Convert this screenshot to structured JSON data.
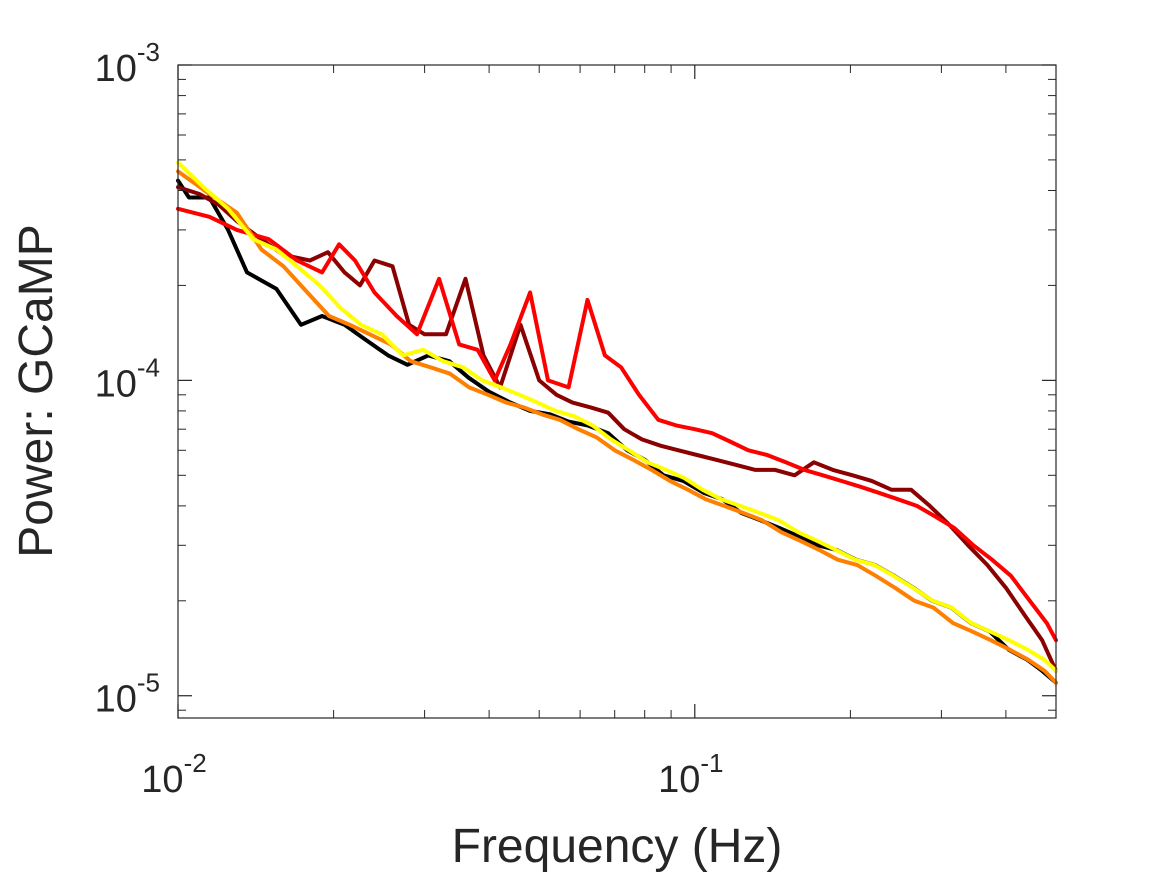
{
  "chart_data": {
    "type": "line",
    "title": "",
    "xlabel": "Frequency (Hz)",
    "ylabel": "Power: GCaMP",
    "xscale": "log",
    "yscale": "log",
    "xlim": [
      0.01,
      0.5
    ],
    "ylim": [
      8.5e-06,
      0.001
    ],
    "grid": false,
    "legend": "none",
    "x_ticks": [
      {
        "value": 0.01,
        "base": "10",
        "exp": "-2"
      },
      {
        "value": 0.1,
        "base": "10",
        "exp": "-1"
      }
    ],
    "y_ticks": [
      {
        "value": 1e-05,
        "base": "10",
        "exp": "-5"
      },
      {
        "value": 0.0001,
        "base": "10",
        "exp": "-4"
      },
      {
        "value": 0.001,
        "base": "10",
        "exp": "-3"
      }
    ],
    "series": [
      {
        "color": "#000000",
        "x": [
          0.01,
          0.0105,
          0.0115,
          0.0125,
          0.0136,
          0.0155,
          0.0173,
          0.019,
          0.021,
          0.023,
          0.0255,
          0.0278,
          0.0305,
          0.0335,
          0.0365,
          0.04,
          0.044,
          0.048,
          0.0525,
          0.057,
          0.062,
          0.068,
          0.074,
          0.08,
          0.087,
          0.095,
          0.104,
          0.113,
          0.123,
          0.134,
          0.146,
          0.159,
          0.173,
          0.188,
          0.205,
          0.223,
          0.243,
          0.265,
          0.288,
          0.314,
          0.342,
          0.372,
          0.405,
          0.44,
          0.47,
          0.5
        ],
        "y": [
          0.00043,
          0.00038,
          0.00038,
          0.0003,
          0.00022,
          0.000195,
          0.00015,
          0.00016,
          0.00015,
          0.000135,
          0.00012,
          0.000112,
          0.00012,
          0.000115,
          0.000102,
          9.2e-05,
          8.5e-05,
          8e-05,
          7.8e-05,
          7.4e-05,
          7.2e-05,
          6.8e-05,
          6e-05,
          5.6e-05,
          5e-05,
          4.8e-05,
          4.4e-05,
          4.2e-05,
          3.8e-05,
          3.6e-05,
          3.4e-05,
          3.2e-05,
          3e-05,
          2.9e-05,
          2.7e-05,
          2.6e-05,
          2.4e-05,
          2.2e-05,
          2e-05,
          1.9e-05,
          1.7e-05,
          1.6e-05,
          1.4e-05,
          1.3e-05,
          1.2e-05,
          1.1e-05
        ]
      },
      {
        "color": "#8b0000",
        "x": [
          0.01,
          0.011,
          0.012,
          0.013,
          0.0145,
          0.016,
          0.018,
          0.0195,
          0.021,
          0.0225,
          0.024,
          0.026,
          0.028,
          0.03,
          0.033,
          0.036,
          0.039,
          0.042,
          0.046,
          0.05,
          0.054,
          0.058,
          0.063,
          0.068,
          0.073,
          0.079,
          0.086,
          0.093,
          0.101,
          0.11,
          0.12,
          0.131,
          0.143,
          0.156,
          0.17,
          0.185,
          0.202,
          0.22,
          0.24,
          0.262,
          0.285,
          0.31,
          0.338,
          0.368,
          0.4,
          0.435,
          0.47,
          0.5
        ],
        "y": [
          0.00041,
          0.00039,
          0.00036,
          0.00032,
          0.00028,
          0.00025,
          0.00024,
          0.000255,
          0.00022,
          0.0002,
          0.00024,
          0.00023,
          0.00015,
          0.00014,
          0.00014,
          0.00021,
          0.00012,
          9.5e-05,
          0.00015,
          0.0001,
          9e-05,
          8.5e-05,
          8.2e-05,
          7.9e-05,
          7e-05,
          6.5e-05,
          6.2e-05,
          6e-05,
          5.8e-05,
          5.6e-05,
          5.4e-05,
          5.2e-05,
          5.2e-05,
          5e-05,
          5.5e-05,
          5.2e-05,
          5e-05,
          4.8e-05,
          4.5e-05,
          4.5e-05,
          4e-05,
          3.5e-05,
          3e-05,
          2.6e-05,
          2.2e-05,
          1.8e-05,
          1.5e-05,
          1.2e-05
        ]
      },
      {
        "color": "#ff0000",
        "x": [
          0.01,
          0.0115,
          0.013,
          0.015,
          0.017,
          0.019,
          0.0205,
          0.022,
          0.024,
          0.0265,
          0.029,
          0.032,
          0.035,
          0.038,
          0.041,
          0.044,
          0.048,
          0.052,
          0.057,
          0.062,
          0.067,
          0.072,
          0.078,
          0.085,
          0.092,
          0.1,
          0.108,
          0.117,
          0.127,
          0.138,
          0.15,
          0.163,
          0.177,
          0.192,
          0.209,
          0.227,
          0.247,
          0.269,
          0.292,
          0.318,
          0.346,
          0.376,
          0.409,
          0.445,
          0.48,
          0.5
        ],
        "y": [
          0.00035,
          0.00033,
          0.0003,
          0.00028,
          0.00024,
          0.00022,
          0.00027,
          0.00024,
          0.00019,
          0.00016,
          0.00014,
          0.00021,
          0.00013,
          0.000125,
          0.0001,
          0.00013,
          0.00019,
          0.0001,
          9.5e-05,
          0.00018,
          0.00012,
          0.00011,
          9e-05,
          7.5e-05,
          7.2e-05,
          7e-05,
          6.8e-05,
          6.4e-05,
          6e-05,
          5.8e-05,
          5.5e-05,
          5.2e-05,
          5e-05,
          4.8e-05,
          4.6e-05,
          4.4e-05,
          4.2e-05,
          4e-05,
          3.7e-05,
          3.4e-05,
          3e-05,
          2.7e-05,
          2.4e-05,
          2e-05,
          1.7e-05,
          1.5e-05
        ]
      },
      {
        "color": "#ff8000",
        "x": [
          0.01,
          0.0115,
          0.013,
          0.0145,
          0.016,
          0.0178,
          0.0196,
          0.0215,
          0.0235,
          0.0258,
          0.0282,
          0.0308,
          0.0336,
          0.0366,
          0.0398,
          0.0432,
          0.0468,
          0.0506,
          0.0548,
          0.0595,
          0.0645,
          0.07,
          0.076,
          0.0825,
          0.0895,
          0.097,
          0.105,
          0.114,
          0.124,
          0.135,
          0.147,
          0.16,
          0.174,
          0.189,
          0.206,
          0.224,
          0.244,
          0.266,
          0.29,
          0.316,
          0.344,
          0.374,
          0.407,
          0.442,
          0.475,
          0.5
        ],
        "y": [
          0.00046,
          0.00039,
          0.00034,
          0.00026,
          0.00023,
          0.00019,
          0.00016,
          0.00015,
          0.00014,
          0.00013,
          0.000115,
          0.00011,
          0.000105,
          9.5e-05,
          9e-05,
          8.5e-05,
          8.2e-05,
          7.8e-05,
          7.5e-05,
          7e-05,
          6.6e-05,
          6e-05,
          5.6e-05,
          5.2e-05,
          4.8e-05,
          4.5e-05,
          4.2e-05,
          4e-05,
          3.8e-05,
          3.6e-05,
          3.3e-05,
          3.1e-05,
          2.9e-05,
          2.7e-05,
          2.6e-05,
          2.4e-05,
          2.2e-05,
          2e-05,
          1.9e-05,
          1.7e-05,
          1.6e-05,
          1.5e-05,
          1.4e-05,
          1.3e-05,
          1.2e-05,
          1.1e-05
        ]
      },
      {
        "color": "#ffff00",
        "x": [
          0.01,
          0.0112,
          0.0125,
          0.014,
          0.0155,
          0.017,
          0.0188,
          0.0206,
          0.0226,
          0.0248,
          0.0272,
          0.0298,
          0.0326,
          0.0356,
          0.0388,
          0.0422,
          0.0458,
          0.0496,
          0.0538,
          0.0584,
          0.0634,
          0.0688,
          0.0746,
          0.081,
          0.088,
          0.0955,
          0.1035,
          0.1125,
          0.1225,
          0.1335,
          0.1455,
          0.1585,
          0.1725,
          0.1875,
          0.2045,
          0.2225,
          0.2425,
          0.2645,
          0.2885,
          0.3145,
          0.3425,
          0.3725,
          0.4055,
          0.4405,
          0.475,
          0.5
        ],
        "y": [
          0.00049,
          0.00041,
          0.00035,
          0.00028,
          0.00026,
          0.00023,
          0.0002,
          0.00017,
          0.00015,
          0.00014,
          0.00012,
          0.000125,
          0.000115,
          0.00011,
          0.0001,
          9.5e-05,
          9e-05,
          8.5e-05,
          8e-05,
          7.7e-05,
          7.2e-05,
          6.5e-05,
          6e-05,
          5.5e-05,
          5.2e-05,
          4.9e-05,
          4.5e-05,
          4.2e-05,
          4e-05,
          3.8e-05,
          3.6e-05,
          3.3e-05,
          3.1e-05,
          2.9e-05,
          2.7e-05,
          2.6e-05,
          2.4e-05,
          2.2e-05,
          2e-05,
          1.9e-05,
          1.7e-05,
          1.6e-05,
          1.5e-05,
          1.4e-05,
          1.3e-05,
          1.2e-05
        ]
      }
    ]
  }
}
